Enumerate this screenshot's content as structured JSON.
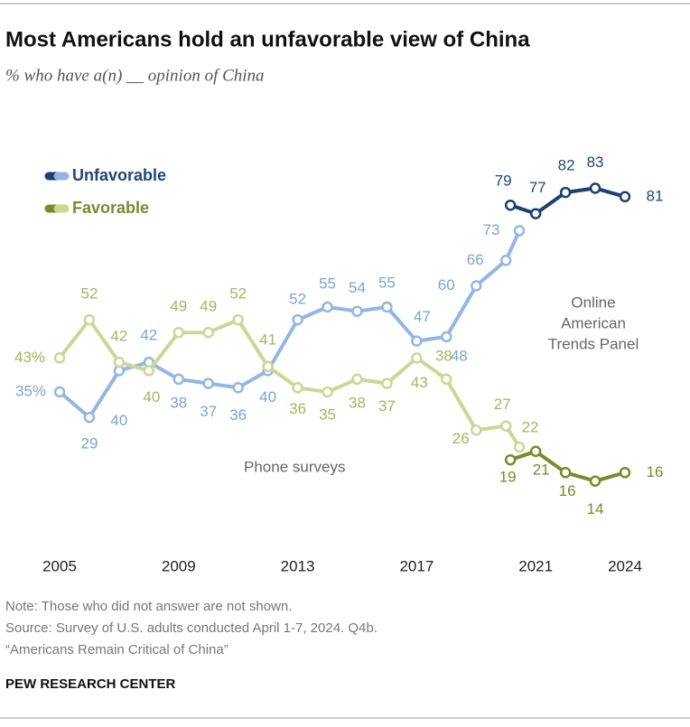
{
  "chart_data": {
    "type": "line",
    "title": "Most Americans hold an unfavorable view of China",
    "subtitle": "% who have a(n) __ opinion of China",
    "annotations": [
      "Phone surveys",
      "Online",
      "American",
      "Trends Panel"
    ],
    "note": "Note: Those who did not answer are not shown.",
    "source": "Source: Survey of U.S. adults conducted April 1-7, 2024. Q4b.",
    "report": "“Americans Remain Critical of China”",
    "footer": "PEW RESEARCH CENTER",
    "xlim": [
      2005,
      2024
    ],
    "xticks": [
      2005,
      2009,
      2013,
      2017,
      2021,
      2024
    ],
    "ylim": [
      0,
      100
    ],
    "series": [
      {
        "name": "Unfavorable",
        "color": "#93b6e4",
        "label_color": "#7ba3d8",
        "x": [
          2005,
          2006,
          2007,
          2008,
          2009,
          2010,
          2011,
          2012,
          2013,
          2014,
          2015,
          2016,
          2017,
          2018,
          2019,
          2020,
          2020.45
        ],
        "values": [
          35,
          29,
          40,
          42,
          38,
          37,
          36,
          40,
          52,
          55,
          54,
          55,
          47,
          48,
          60,
          66,
          73
        ],
        "value_labels": [
          "35%",
          "29",
          "40",
          "42",
          "38",
          "37",
          "36",
          "40",
          "52",
          "55",
          "54",
          "55",
          "47",
          "48",
          "60",
          "66",
          "73"
        ]
      },
      {
        "name": "Favorable",
        "color": "#ccd695",
        "label_color": "#a9b35f",
        "x": [
          2005,
          2006,
          2007,
          2008,
          2009,
          2010,
          2011,
          2012,
          2013,
          2014,
          2015,
          2016,
          2017,
          2018,
          2019,
          2020,
          2020.45
        ],
        "values": [
          43,
          52,
          42,
          40,
          49,
          49,
          52,
          41,
          36,
          35,
          38,
          37,
          43,
          38,
          26,
          27,
          22
        ],
        "value_labels": [
          "43%",
          "52",
          "42",
          "40",
          "49",
          "49",
          "52",
          "41",
          "36",
          "35",
          "38",
          "37",
          "43",
          "38",
          "26",
          "27",
          "22"
        ]
      },
      {
        "name": "Unfavorable",
        "color": "#1f3f73",
        "label_color": "#22447a",
        "x": [
          2020.15,
          2021,
          2022,
          2023,
          2024
        ],
        "values": [
          79,
          77,
          82,
          83,
          81
        ]
      },
      {
        "name": "Favorable",
        "color": "#7a8a2c",
        "label_color": "#7a8a2c",
        "x": [
          2020.15,
          2021,
          2022,
          2023,
          2024
        ],
        "values": [
          19,
          21,
          16,
          14,
          16
        ]
      }
    ]
  }
}
